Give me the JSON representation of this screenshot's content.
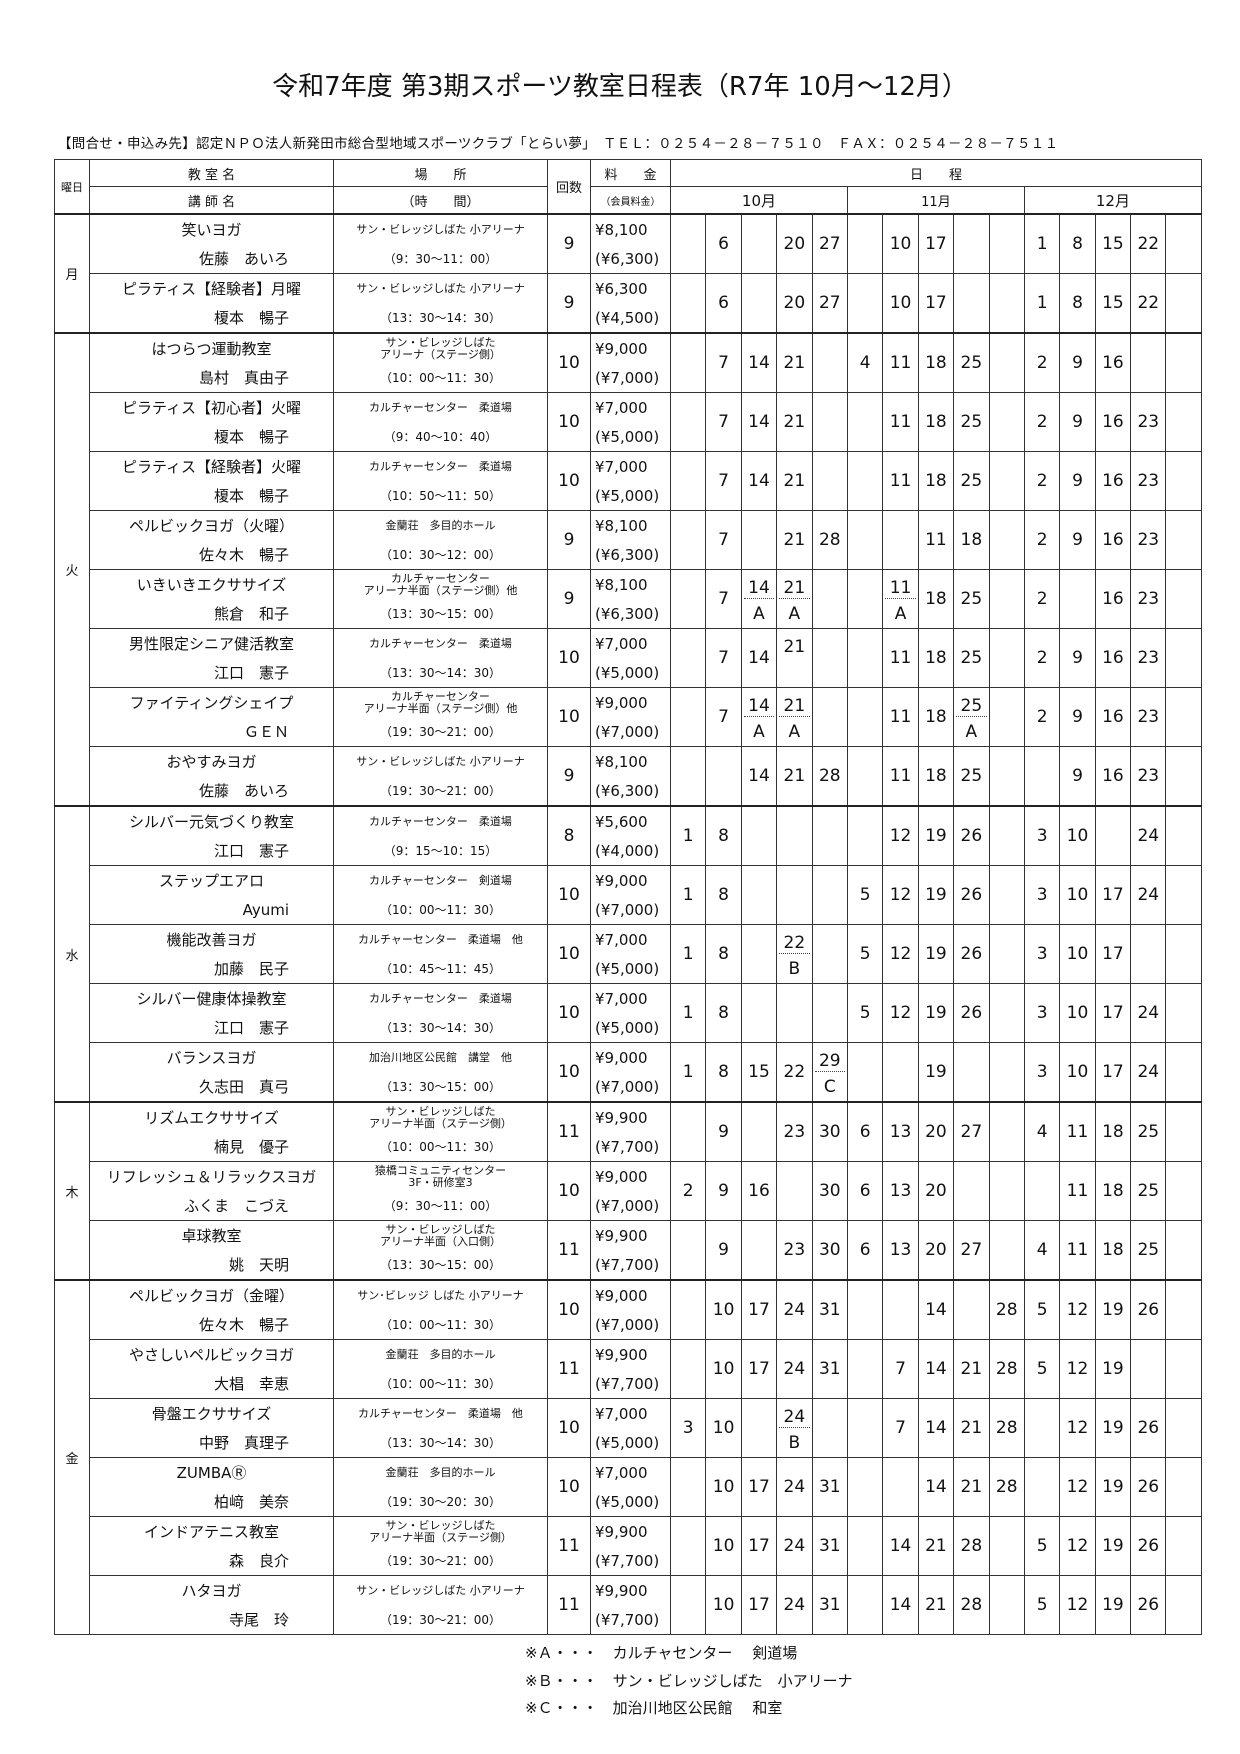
{
  "title": "令和7年度 第3期スポーツ教室日程表（R7年 10月～12月）",
  "contact": "【問合せ・申込み先】認定ＮＰＯ法人新発田市総合型地域スポーツクラブ「とらい夢」　ＴＥＬ：０２５４－２８－７５１０　ＦＡＸ：０２５４－２８－７５１１",
  "header": {
    "day": "曜日",
    "class_name": "教 室 名",
    "instructor": "講 師 名",
    "place": "場　　所",
    "time": "（時　　間）",
    "count": "回数",
    "fee": "料　　金",
    "member_fee": "（会員料金）",
    "schedule": "日　　程",
    "months": [
      "10月",
      "11月",
      "12月"
    ]
  },
  "groups": [
    {
      "day": "月",
      "rows": [
        {
          "name": "笑いヨガ",
          "instructor": "佐藤　あいろ",
          "place": "サン・ビレッジしばた 小アリーナ",
          "time": "（9：30～11：00）",
          "count": "9",
          "fee": "¥8,100",
          "member_fee": "(¥6,300)",
          "dates": [
            "",
            "6",
            "",
            "20",
            "27",
            "",
            "10",
            "17",
            "",
            "",
            "1",
            "8",
            "15",
            "22",
            ""
          ]
        },
        {
          "name": "ピラティス【経験者】月曜",
          "instructor": "榎本　暢子",
          "place": "サン・ビレッジしばた 小アリーナ",
          "time": "（13：30～14：30）",
          "count": "9",
          "fee": "¥6,300",
          "member_fee": "(¥4,500)",
          "dates": [
            "",
            "6",
            "",
            "20",
            "27",
            "",
            "10",
            "17",
            "",
            "",
            "1",
            "8",
            "15",
            "22",
            ""
          ]
        }
      ]
    },
    {
      "day": "火",
      "rows": [
        {
          "name": "はつらつ運動教室",
          "instructor": "島村　真由子",
          "place": "サン・ビレッジしばた\nアリーナ（ステージ側）",
          "time": "（10：00～11：30）",
          "count": "10",
          "fee": "¥9,000",
          "member_fee": "(¥7,000)",
          "dates": [
            "",
            "7",
            "14",
            "21",
            "",
            "4",
            "11",
            "18",
            "25",
            "",
            "2",
            "9",
            "16",
            "",
            ""
          ]
        },
        {
          "name": "ピラティス【初心者】火曜",
          "instructor": "榎本　暢子",
          "place": "カルチャーセンター　柔道場",
          "time": "（9：40～10：40）",
          "count": "10",
          "fee": "¥7,000",
          "member_fee": "(¥5,000)",
          "dates": [
            "",
            "7",
            "14",
            "21",
            "",
            "",
            "11",
            "18",
            "25",
            "",
            "2",
            "9",
            "16",
            "23",
            ""
          ]
        },
        {
          "name": "ピラティス【経験者】火曜",
          "instructor": "榎本　暢子",
          "place": "カルチャーセンター　柔道場",
          "time": "（10：50～11：50）",
          "count": "10",
          "fee": "¥7,000",
          "member_fee": "(¥5,000)",
          "dates": [
            "",
            "7",
            "14",
            "21",
            "",
            "",
            "11",
            "18",
            "25",
            "",
            "2",
            "9",
            "16",
            "23",
            ""
          ]
        },
        {
          "name": "ペルビックヨガ（火曜）",
          "instructor": "佐々木　暢子",
          "place": "金蘭荘　多目的ホール",
          "time": "（10：30～12：00）",
          "count": "9",
          "fee": "¥8,100",
          "member_fee": "(¥6,300)",
          "dates": [
            "",
            "7",
            "",
            "21",
            "28",
            "",
            "",
            "11",
            "18",
            "",
            "2",
            "9",
            "16",
            "23",
            ""
          ]
        },
        {
          "name": "いきいきエクササイズ",
          "instructor": "熊倉　和子",
          "place": "カルチャーセンター\nアリーナ半面（ステージ側）他",
          "time": "（13：30～15：00）",
          "count": "9",
          "fee": "¥8,100",
          "member_fee": "(¥6,300)",
          "dates": [
            "",
            "7",
            {
              "d": "14",
              "n": "A"
            },
            {
              "d": "21",
              "n": "A"
            },
            "",
            "",
            {
              "d": "11",
              "n": "A"
            },
            "18",
            "25",
            "",
            "2",
            "",
            "16",
            "23",
            ""
          ]
        },
        {
          "name": "男性限定シニア健活教室",
          "instructor": "江口　憲子",
          "place": "カルチャーセンター　柔道場",
          "time": "（13：30～14：30）",
          "count": "10",
          "fee": "¥7,000",
          "member_fee": "(¥5,000)",
          "dates": [
            "",
            "7",
            "14",
            {
              "d": "21",
              "n": ""
            },
            "",
            "",
            "11",
            "18",
            "25",
            "",
            "2",
            "9",
            "16",
            "23",
            ""
          ]
        },
        {
          "name": "ファイティングシェイプ",
          "instructor": "ＧＥＮ",
          "place": "カルチャーセンター\nアリーナ半面（ステージ側）他",
          "time": "（19：30～21：00）",
          "count": "10",
          "fee": "¥9,000",
          "member_fee": "(¥7,000)",
          "dates": [
            "",
            "7",
            {
              "d": "14",
              "n": "A"
            },
            {
              "d": "21",
              "n": "A"
            },
            "",
            "",
            "11",
            "18",
            {
              "d": "25",
              "n": "A"
            },
            "",
            "2",
            "9",
            "16",
            "23",
            ""
          ]
        },
        {
          "name": "おやすみヨガ",
          "instructor": "佐藤　あいろ",
          "place": "サン・ビレッジしばた 小アリーナ",
          "time": "（19：30～21：00）",
          "count": "9",
          "fee": "¥8,100",
          "member_fee": "(¥6,300)",
          "dates": [
            "",
            "",
            "14",
            "21",
            "28",
            "",
            "11",
            "18",
            "25",
            "",
            "",
            "9",
            "16",
            "23",
            ""
          ]
        }
      ]
    },
    {
      "day": "水",
      "rows": [
        {
          "name": "シルバー元気づくり教室",
          "instructor": "江口　憲子",
          "place": "カルチャーセンター　柔道場",
          "time": "（9：15～10：15）",
          "count": "8",
          "fee": "¥5,600",
          "member_fee": "(¥4,000)",
          "dates": [
            "1",
            "8",
            "",
            "",
            "",
            "",
            "12",
            "19",
            "26",
            "",
            "3",
            "10",
            "",
            "24",
            ""
          ]
        },
        {
          "name": "ステップエアロ",
          "instructor": "Ayumi",
          "place": "カルチャーセンター　剣道場",
          "time": "（10：00～11：30）",
          "count": "10",
          "fee": "¥9,000",
          "member_fee": "(¥7,000)",
          "dates": [
            "1",
            "8",
            "",
            "",
            "",
            "5",
            "12",
            "19",
            "26",
            "",
            "3",
            "10",
            "17",
            "24",
            ""
          ]
        },
        {
          "name": "機能改善ヨガ",
          "instructor": "加藤　民子",
          "place": "カルチャーセンター　柔道場　他",
          "time": "（10：45～11：45）",
          "count": "10",
          "fee": "¥7,000",
          "member_fee": "(¥5,000)",
          "dates": [
            "1",
            "8",
            "",
            {
              "d": "22",
              "n": "B"
            },
            "",
            "5",
            "12",
            "19",
            "26",
            "",
            "3",
            "10",
            "17",
            "",
            ""
          ]
        },
        {
          "name": "シルバー健康体操教室",
          "instructor": "江口　憲子",
          "place": "カルチャーセンター　柔道場",
          "time": "（13：30～14：30）",
          "count": "10",
          "fee": "¥7,000",
          "member_fee": "(¥5,000)",
          "dates": [
            "1",
            "8",
            "",
            "",
            "",
            "5",
            "12",
            "19",
            "26",
            "",
            "3",
            "10",
            "17",
            "24",
            ""
          ]
        },
        {
          "name": "バランスヨガ",
          "instructor": "久志田　真弓",
          "place": "加治川地区公民館　講堂　他",
          "time": "（13：30～15：00）",
          "count": "10",
          "fee": "¥9,000",
          "member_fee": "(¥7,000)",
          "dates": [
            "1",
            "8",
            "15",
            "22",
            {
              "d": "29",
              "n": "C"
            },
            "",
            "",
            "19",
            "",
            "",
            "3",
            "10",
            "17",
            "24",
            ""
          ]
        }
      ]
    },
    {
      "day": "木",
      "rows": [
        {
          "name": "リズムエクササイズ",
          "instructor": "楠見　優子",
          "place": "サン・ビレッジしばた\nアリーナ半面（ステージ側）",
          "time": "（10：00～11：30）",
          "count": "11",
          "fee": "¥9,900",
          "member_fee": "(¥7,700)",
          "dates": [
            "",
            "9",
            "",
            "23",
            "30",
            "6",
            "13",
            "20",
            "27",
            "",
            "4",
            "11",
            "18",
            "25",
            ""
          ]
        },
        {
          "name": "リフレッシュ＆リラックスヨガ",
          "instructor": "ふくま　こづえ",
          "place": "猿橋コミュニティセンター\n3F・研修室3",
          "time": "（9：30～11：00）",
          "count": "10",
          "fee": "¥9,000",
          "member_fee": "(¥7,000)",
          "dates": [
            "2",
            "9",
            "16",
            "",
            "30",
            "6",
            "13",
            "20",
            "",
            "",
            "",
            "11",
            "18",
            "25",
            ""
          ]
        },
        {
          "name": "卓球教室",
          "instructor": "姚　天明",
          "place": "サン・ビレッジしばた\nアリーナ半面（入口側）",
          "time": "（13：30～15：00）",
          "count": "11",
          "fee": "¥9,900",
          "member_fee": "(¥7,700)",
          "dates": [
            "",
            "9",
            "",
            "23",
            "30",
            "6",
            "13",
            "20",
            "27",
            "",
            "4",
            "11",
            "18",
            "25",
            ""
          ]
        }
      ]
    },
    {
      "day": "金",
      "rows": [
        {
          "name": "ペルビックヨガ（金曜）",
          "instructor": "佐々木　暢子",
          "place": "サン･ビレッジ しばた 小アリーナ",
          "time": "（10：00～11：30）",
          "count": "10",
          "fee": "¥9,000",
          "member_fee": "(¥7,000)",
          "dates": [
            "",
            "10",
            "17",
            "24",
            "31",
            "",
            "",
            "14",
            "",
            "28",
            "5",
            "12",
            "19",
            "26",
            ""
          ]
        },
        {
          "name": "やさしいペルビックヨガ",
          "instructor": "大椙　幸恵",
          "place": "金蘭荘　多目的ホール",
          "time": "（10：00～11：30）",
          "count": "11",
          "fee": "¥9,900",
          "member_fee": "(¥7,700)",
          "dates": [
            "",
            "10",
            "17",
            "24",
            "31",
            "",
            "7",
            "14",
            "21",
            "28",
            "5",
            "12",
            "19",
            "",
            ""
          ]
        },
        {
          "name": "骨盤エクササイズ",
          "instructor": "中野　真理子",
          "place": "カルチャーセンター　柔道場　他",
          "time": "（13：30～14：30）",
          "count": "10",
          "fee": "¥7,000",
          "member_fee": "(¥5,000)",
          "dates": [
            "3",
            "10",
            "",
            {
              "d": "24",
              "n": "B"
            },
            "",
            "",
            "7",
            "14",
            "21",
            "28",
            "",
            "12",
            "19",
            "26",
            ""
          ]
        },
        {
          "name": "ZUMBAⓇ",
          "instructor": "柏﨑　美奈",
          "place": "金蘭荘　多目的ホール",
          "time": "（19：30～20：30）",
          "count": "10",
          "fee": "¥7,000",
          "member_fee": "(¥5,000)",
          "dates": [
            "",
            "10",
            "17",
            "24",
            "31",
            "",
            "",
            "14",
            "21",
            "28",
            "",
            "12",
            "19",
            "26",
            ""
          ]
        },
        {
          "name": "インドアテニス教室",
          "instructor": "森　良介",
          "place": "サン・ビレッジしばた\nアリーナ半面（ステージ側）",
          "time": "（19：30～21：00）",
          "count": "11",
          "fee": "¥9,900",
          "member_fee": "(¥7,700)",
          "dates": [
            "",
            "10",
            "17",
            "24",
            "31",
            "",
            "14",
            "21",
            "28",
            "",
            "5",
            "12",
            "19",
            "26",
            ""
          ]
        },
        {
          "name": "ハタヨガ",
          "instructor": "寺尾　玲",
          "place": "サン・ビレッジしばた 小アリーナ",
          "time": "（19：30～21：00）",
          "count": "11",
          "fee": "¥9,900",
          "member_fee": "(¥7,700)",
          "dates": [
            "",
            "10",
            "17",
            "24",
            "31",
            "",
            "14",
            "21",
            "28",
            "",
            "5",
            "12",
            "19",
            "26",
            ""
          ]
        }
      ]
    }
  ],
  "footnotes": [
    "※Ａ・・・　カルチャセンター　 剣道場",
    "※Ｂ・・・　サン・ビレッジしばた　小アリーナ",
    "※Ｃ・・・　加治川地区公民館　 和室"
  ]
}
